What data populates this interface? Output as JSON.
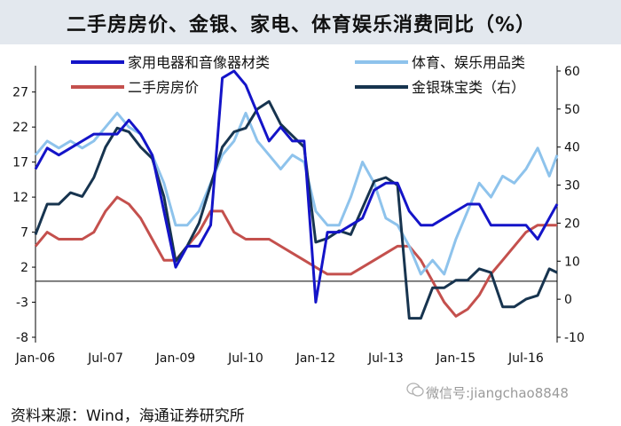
{
  "title": "二手房房价、金银、家电、体育娱乐消费同比（%）",
  "source": "资料来源：Wind，海通证券研究所",
  "watermark": "微信号:jiangchao8848",
  "chart_data": {
    "type": "line",
    "title": "二手房房价、金银、家电、体育娱乐消费同比（%）",
    "x_tick_labels": [
      "Jan-06",
      "Jul-07",
      "Jan-09",
      "Jul-10",
      "Jan-12",
      "Jul-13",
      "Jan-15",
      "Jul-16"
    ],
    "x_range": [
      "2006-01",
      "2017-03"
    ],
    "left_axis": {
      "ylim": [
        -8,
        30
      ],
      "ticks": [
        -8,
        -3,
        2,
        7,
        12,
        17,
        22,
        27
      ]
    },
    "right_axis": {
      "ylim": [
        -10,
        60
      ],
      "ticks": [
        -10,
        0,
        10,
        20,
        30,
        40,
        50,
        60
      ]
    },
    "grid": false,
    "legend": "top-inside",
    "series": [
      {
        "name": "家用电器和音像器材类",
        "axis": "left",
        "color": "#1414c8",
        "points": [
          [
            "2006-01",
            16
          ],
          [
            "2006-04",
            19
          ],
          [
            "2006-07",
            18
          ],
          [
            "2006-10",
            19
          ],
          [
            "2007-01",
            20
          ],
          [
            "2007-04",
            21
          ],
          [
            "2007-07",
            21
          ],
          [
            "2007-10",
            21
          ],
          [
            "2008-01",
            23
          ],
          [
            "2008-04",
            21
          ],
          [
            "2008-07",
            18
          ],
          [
            "2008-10",
            10
          ],
          [
            "2009-01",
            2
          ],
          [
            "2009-04",
            5
          ],
          [
            "2009-07",
            5
          ],
          [
            "2009-10",
            8
          ],
          [
            "2010-01",
            29
          ],
          [
            "2010-04",
            30
          ],
          [
            "2010-07",
            28
          ],
          [
            "2010-10",
            24
          ],
          [
            "2011-01",
            20
          ],
          [
            "2011-04",
            22
          ],
          [
            "2011-07",
            20
          ],
          [
            "2011-10",
            20
          ],
          [
            "2012-01",
            -3
          ],
          [
            "2012-04",
            7
          ],
          [
            "2012-07",
            7
          ],
          [
            "2012-10",
            8
          ],
          [
            "2013-01",
            9
          ],
          [
            "2013-04",
            13
          ],
          [
            "2013-07",
            14
          ],
          [
            "2013-10",
            14
          ],
          [
            "2014-01",
            10
          ],
          [
            "2014-04",
            8
          ],
          [
            "2014-07",
            8
          ],
          [
            "2014-10",
            9
          ],
          [
            "2015-01",
            10
          ],
          [
            "2015-04",
            11
          ],
          [
            "2015-07",
            11
          ],
          [
            "2015-10",
            8
          ],
          [
            "2016-01",
            8
          ],
          [
            "2016-04",
            8
          ],
          [
            "2016-07",
            8
          ],
          [
            "2016-10",
            6
          ],
          [
            "2017-01",
            9
          ],
          [
            "2017-03",
            11
          ]
        ]
      },
      {
        "name": "体育、娱乐用品类",
        "axis": "left",
        "color": "#8ec3ec",
        "points": [
          [
            "2006-01",
            18
          ],
          [
            "2006-04",
            20
          ],
          [
            "2006-07",
            19
          ],
          [
            "2006-10",
            20
          ],
          [
            "2007-01",
            19
          ],
          [
            "2007-04",
            20
          ],
          [
            "2007-07",
            22
          ],
          [
            "2007-10",
            24
          ],
          [
            "2008-01",
            22
          ],
          [
            "2008-04",
            21
          ],
          [
            "2008-07",
            18
          ],
          [
            "2008-10",
            14
          ],
          [
            "2009-01",
            8
          ],
          [
            "2009-04",
            8
          ],
          [
            "2009-07",
            10
          ],
          [
            "2009-10",
            14
          ],
          [
            "2010-01",
            18
          ],
          [
            "2010-04",
            20
          ],
          [
            "2010-07",
            24
          ],
          [
            "2010-10",
            20
          ],
          [
            "2011-01",
            18
          ],
          [
            "2011-04",
            16
          ],
          [
            "2011-07",
            18
          ],
          [
            "2011-10",
            17
          ],
          [
            "2012-01",
            10
          ],
          [
            "2012-04",
            8
          ],
          [
            "2012-07",
            8
          ],
          [
            "2012-10",
            12
          ],
          [
            "2013-01",
            17
          ],
          [
            "2013-04",
            14
          ],
          [
            "2013-07",
            9
          ],
          [
            "2013-10",
            8
          ],
          [
            "2014-01",
            5
          ],
          [
            "2014-04",
            1
          ],
          [
            "2014-07",
            3
          ],
          [
            "2014-10",
            1
          ],
          [
            "2015-01",
            6
          ],
          [
            "2015-04",
            10
          ],
          [
            "2015-07",
            14
          ],
          [
            "2015-10",
            12
          ],
          [
            "2016-01",
            15
          ],
          [
            "2016-04",
            14
          ],
          [
            "2016-07",
            16
          ],
          [
            "2016-10",
            19
          ],
          [
            "2017-01",
            15
          ],
          [
            "2017-03",
            18
          ]
        ]
      },
      {
        "name": "二手房房价",
        "axis": "left",
        "color": "#c4504d",
        "points": [
          [
            "2006-01",
            5
          ],
          [
            "2006-04",
            7
          ],
          [
            "2006-07",
            6
          ],
          [
            "2006-10",
            6
          ],
          [
            "2007-01",
            6
          ],
          [
            "2007-04",
            7
          ],
          [
            "2007-07",
            10
          ],
          [
            "2007-10",
            12
          ],
          [
            "2008-01",
            11
          ],
          [
            "2008-04",
            9
          ],
          [
            "2008-07",
            6
          ],
          [
            "2008-10",
            3
          ],
          [
            "2009-01",
            3
          ],
          [
            "2009-04",
            5
          ],
          [
            "2009-07",
            7
          ],
          [
            "2009-10",
            10
          ],
          [
            "2010-01",
            10
          ],
          [
            "2010-04",
            7
          ],
          [
            "2010-07",
            6
          ],
          [
            "2010-10",
            6
          ],
          [
            "2011-01",
            6
          ],
          [
            "2011-04",
            5
          ],
          [
            "2011-07",
            4
          ],
          [
            "2011-10",
            3
          ],
          [
            "2012-01",
            2
          ],
          [
            "2012-04",
            1
          ],
          [
            "2012-07",
            1
          ],
          [
            "2012-10",
            1
          ],
          [
            "2013-01",
            2
          ],
          [
            "2013-04",
            3
          ],
          [
            "2013-07",
            4
          ],
          [
            "2013-10",
            5
          ],
          [
            "2014-01",
            5
          ],
          [
            "2014-04",
            3
          ],
          [
            "2014-07",
            0
          ],
          [
            "2014-10",
            -3
          ],
          [
            "2015-01",
            -5
          ],
          [
            "2015-04",
            -4
          ],
          [
            "2015-07",
            -2
          ],
          [
            "2015-10",
            1
          ],
          [
            "2016-01",
            3
          ],
          [
            "2016-04",
            5
          ],
          [
            "2016-07",
            7
          ],
          [
            "2016-10",
            8
          ],
          [
            "2017-01",
            8
          ],
          [
            "2017-03",
            8
          ]
        ]
      },
      {
        "name": "金银珠宝类（右）",
        "axis": "right",
        "color": "#17344f",
        "points": [
          [
            "2006-01",
            17
          ],
          [
            "2006-04",
            25
          ],
          [
            "2006-07",
            25
          ],
          [
            "2006-10",
            28
          ],
          [
            "2007-01",
            27
          ],
          [
            "2007-04",
            32
          ],
          [
            "2007-07",
            40
          ],
          [
            "2007-10",
            45
          ],
          [
            "2008-01",
            44
          ],
          [
            "2008-04",
            40
          ],
          [
            "2008-07",
            37
          ],
          [
            "2008-10",
            27
          ],
          [
            "2009-01",
            10
          ],
          [
            "2009-04",
            14
          ],
          [
            "2009-07",
            20
          ],
          [
            "2009-10",
            30
          ],
          [
            "2010-01",
            40
          ],
          [
            "2010-04",
            44
          ],
          [
            "2010-07",
            45
          ],
          [
            "2010-10",
            50
          ],
          [
            "2011-01",
            52
          ],
          [
            "2011-04",
            46
          ],
          [
            "2011-07",
            43
          ],
          [
            "2011-10",
            40
          ],
          [
            "2012-01",
            15
          ],
          [
            "2012-04",
            16
          ],
          [
            "2012-07",
            18
          ],
          [
            "2012-10",
            17
          ],
          [
            "2013-01",
            24
          ],
          [
            "2013-04",
            31
          ],
          [
            "2013-07",
            32
          ],
          [
            "2013-10",
            30
          ],
          [
            "2014-01",
            -5
          ],
          [
            "2014-04",
            -5
          ],
          [
            "2014-07",
            3
          ],
          [
            "2014-10",
            3
          ],
          [
            "2015-01",
            5
          ],
          [
            "2015-04",
            5
          ],
          [
            "2015-07",
            8
          ],
          [
            "2015-10",
            7
          ],
          [
            "2016-01",
            -2
          ],
          [
            "2016-04",
            -2
          ],
          [
            "2016-07",
            0
          ],
          [
            "2016-10",
            1
          ],
          [
            "2017-01",
            8
          ],
          [
            "2017-03",
            7
          ]
        ]
      }
    ]
  }
}
